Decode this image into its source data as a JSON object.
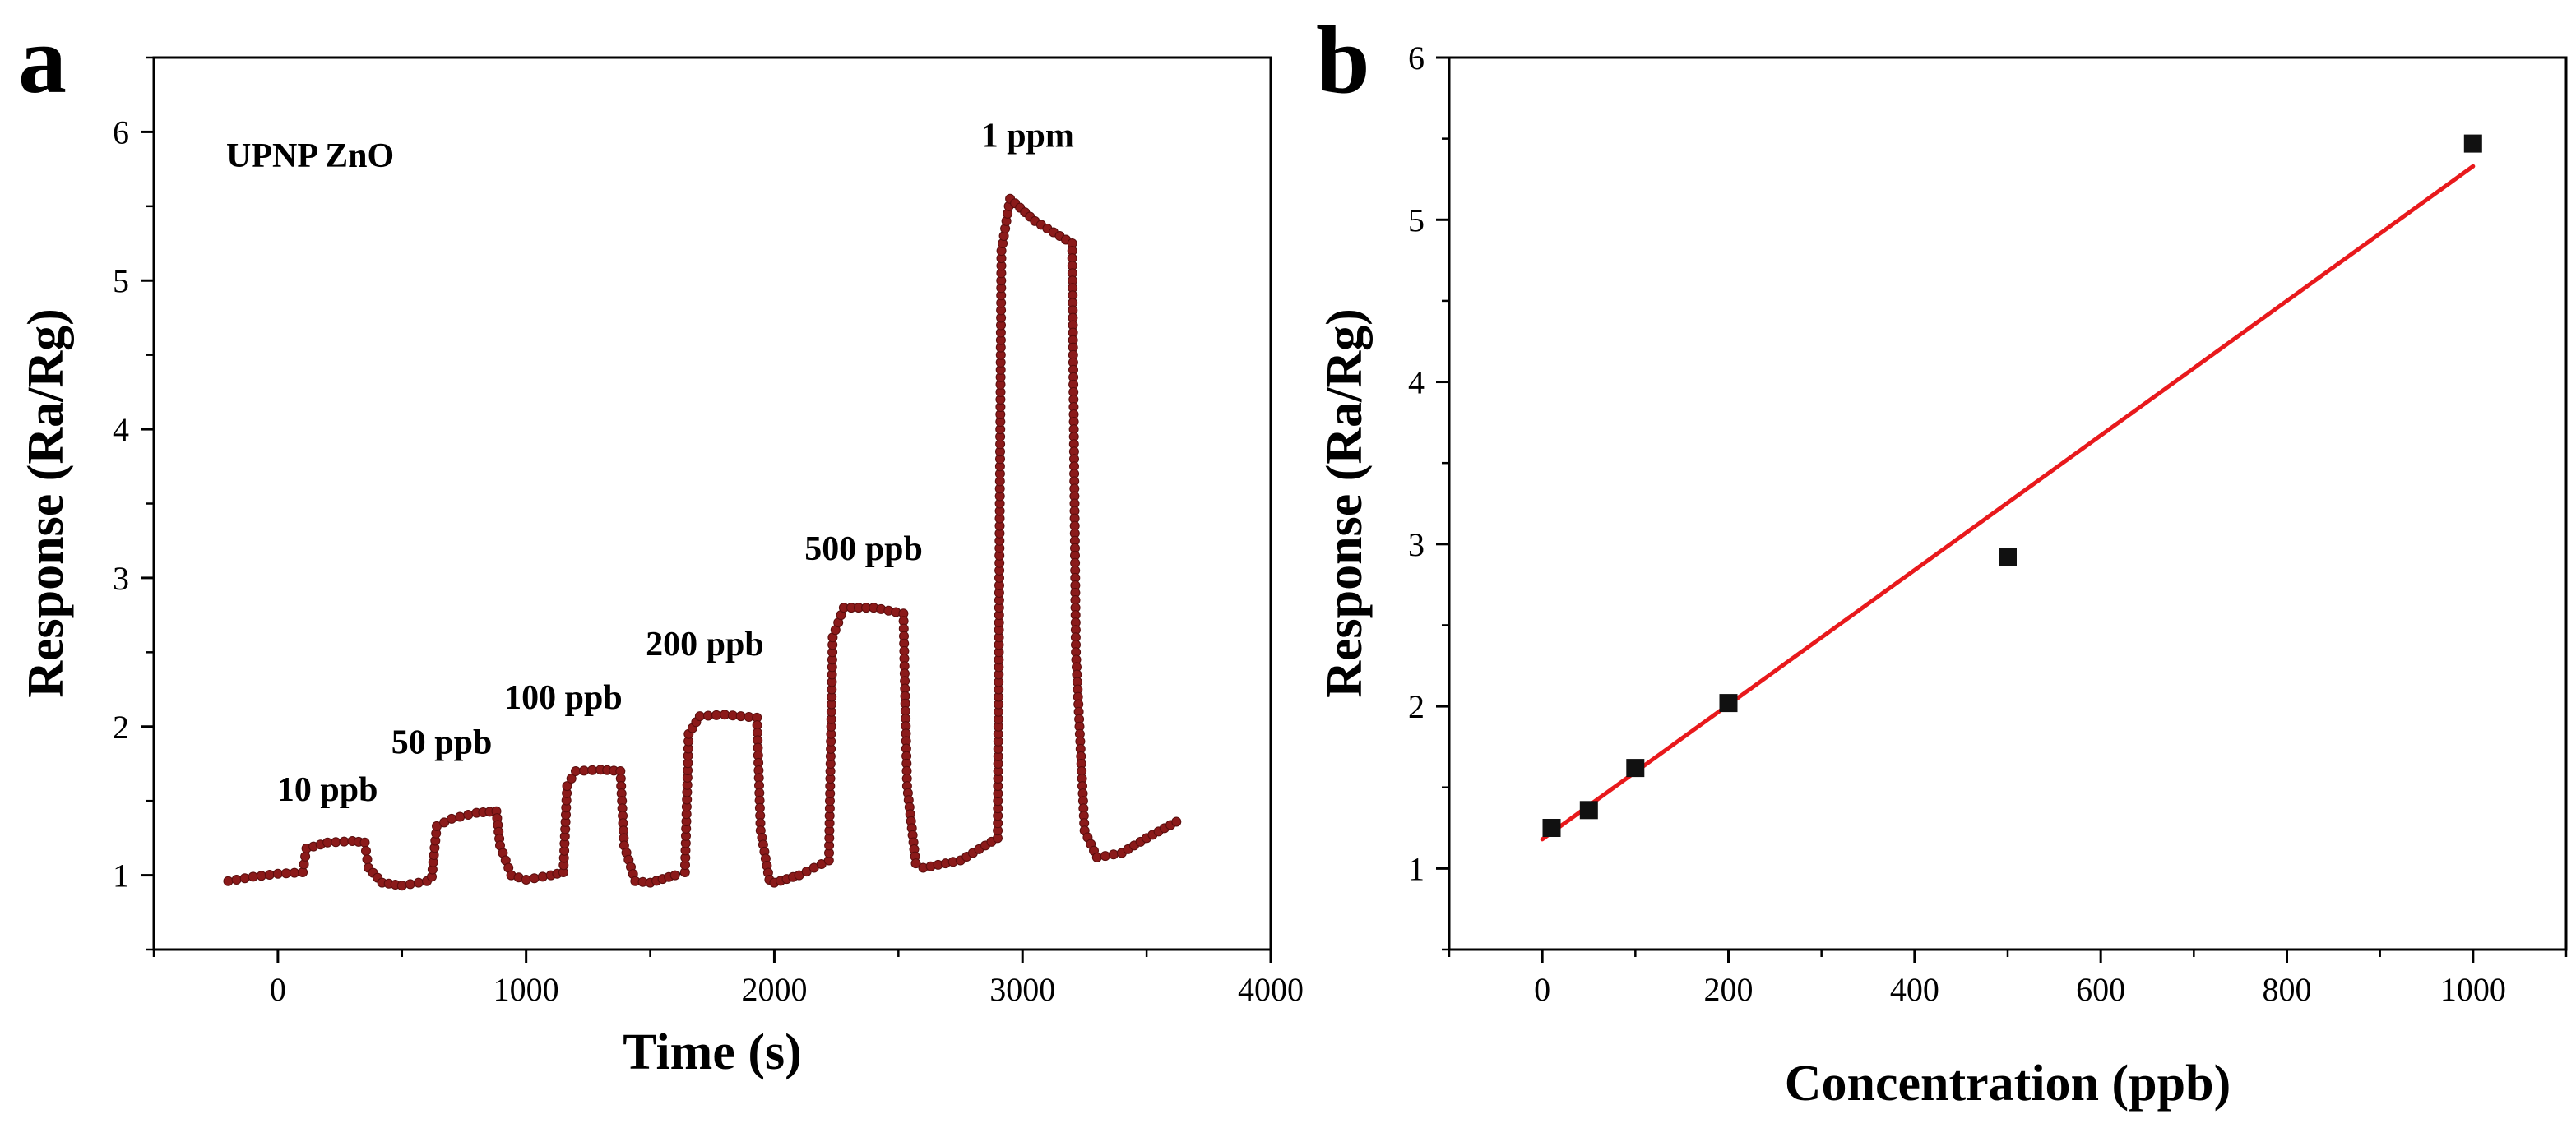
{
  "colors": {
    "series_a": "#8b1a1a",
    "trace_a": "#111111",
    "points_b": "#111111",
    "fit_b": "#e8191c"
  },
  "chart_data": [
    {
      "panel": "a",
      "type": "line",
      "title": "UPNP ZnO",
      "xlabel": "Time (s)",
      "ylabel": "Response (Ra/Rg)",
      "xlim": [
        -500,
        4000
      ],
      "ylim": [
        0.5,
        6.5
      ],
      "xticks": [
        0,
        1000,
        2000,
        3000,
        4000
      ],
      "yticks": [
        1,
        2,
        3,
        4,
        5,
        6
      ],
      "legend": "none",
      "grid": false,
      "series": [
        {
          "name": "Response",
          "marker": "circle",
          "points": [
            [
              -200,
              0.96
            ],
            [
              -100,
              0.99
            ],
            [
              0,
              1.01
            ],
            [
              100,
              1.02
            ],
            [
              115,
              1.18
            ],
            [
              200,
              1.22
            ],
            [
              300,
              1.23
            ],
            [
              350,
              1.22
            ],
            [
              365,
              1.05
            ],
            [
              420,
              0.95
            ],
            [
              500,
              0.93
            ],
            [
              600,
              0.96
            ],
            [
              620,
              0.99
            ],
            [
              640,
              1.33
            ],
            [
              700,
              1.38
            ],
            [
              800,
              1.42
            ],
            [
              880,
              1.43
            ],
            [
              895,
              1.2
            ],
            [
              940,
              1.0
            ],
            [
              1000,
              0.97
            ],
            [
              1100,
              1.0
            ],
            [
              1150,
              1.02
            ],
            [
              1165,
              1.6
            ],
            [
              1200,
              1.7
            ],
            [
              1300,
              1.71
            ],
            [
              1380,
              1.7
            ],
            [
              1395,
              1.2
            ],
            [
              1440,
              0.96
            ],
            [
              1500,
              0.95
            ],
            [
              1600,
              1.0
            ],
            [
              1640,
              1.02
            ],
            [
              1655,
              1.95
            ],
            [
              1700,
              2.07
            ],
            [
              1800,
              2.08
            ],
            [
              1930,
              2.06
            ],
            [
              1945,
              1.3
            ],
            [
              1980,
              0.97
            ],
            [
              2000,
              0.95
            ],
            [
              2100,
              1.0
            ],
            [
              2220,
              1.1
            ],
            [
              2235,
              2.6
            ],
            [
              2280,
              2.8
            ],
            [
              2400,
              2.8
            ],
            [
              2520,
              2.76
            ],
            [
              2535,
              1.6
            ],
            [
              2570,
              1.08
            ],
            [
              2600,
              1.05
            ],
            [
              2750,
              1.1
            ],
            [
              2900,
              1.25
            ],
            [
              2915,
              5.2
            ],
            [
              2950,
              5.55
            ],
            [
              3050,
              5.4
            ],
            [
              3200,
              5.25
            ],
            [
              3215,
              2.5
            ],
            [
              3250,
              1.3
            ],
            [
              3300,
              1.12
            ],
            [
              3400,
              1.15
            ],
            [
              3500,
              1.25
            ],
            [
              3620,
              1.36
            ]
          ]
        }
      ],
      "annotations": [
        {
          "text": "10 ppb",
          "x": 200,
          "y": 1.5
        },
        {
          "text": "50 ppb",
          "x": 660,
          "y": 1.82
        },
        {
          "text": "100 ppb",
          "x": 1150,
          "y": 2.12
        },
        {
          "text": "200 ppb",
          "x": 1720,
          "y": 2.48
        },
        {
          "text": "500 ppb",
          "x": 2360,
          "y": 3.12
        },
        {
          "text": "1 ppm",
          "x": 3020,
          "y": 5.9
        }
      ]
    },
    {
      "panel": "b",
      "type": "scatter",
      "xlabel": "Concentration (ppb)",
      "ylabel": "Response (Ra/Rg)",
      "xlim": [
        -100,
        1100
      ],
      "ylim": [
        0.5,
        6
      ],
      "xticks": [
        0,
        200,
        400,
        600,
        800,
        1000
      ],
      "yticks": [
        1,
        2,
        3,
        4,
        5,
        6
      ],
      "legend": "none",
      "grid": false,
      "series": [
        {
          "name": "Response",
          "marker": "square",
          "x": [
            10,
            50,
            100,
            200,
            500,
            1000
          ],
          "y": [
            1.25,
            1.36,
            1.62,
            2.02,
            2.92,
            5.47
          ]
        }
      ],
      "fit": {
        "type": "linear",
        "x": [
          0,
          1000
        ],
        "y": [
          1.18,
          5.33
        ]
      }
    }
  ]
}
